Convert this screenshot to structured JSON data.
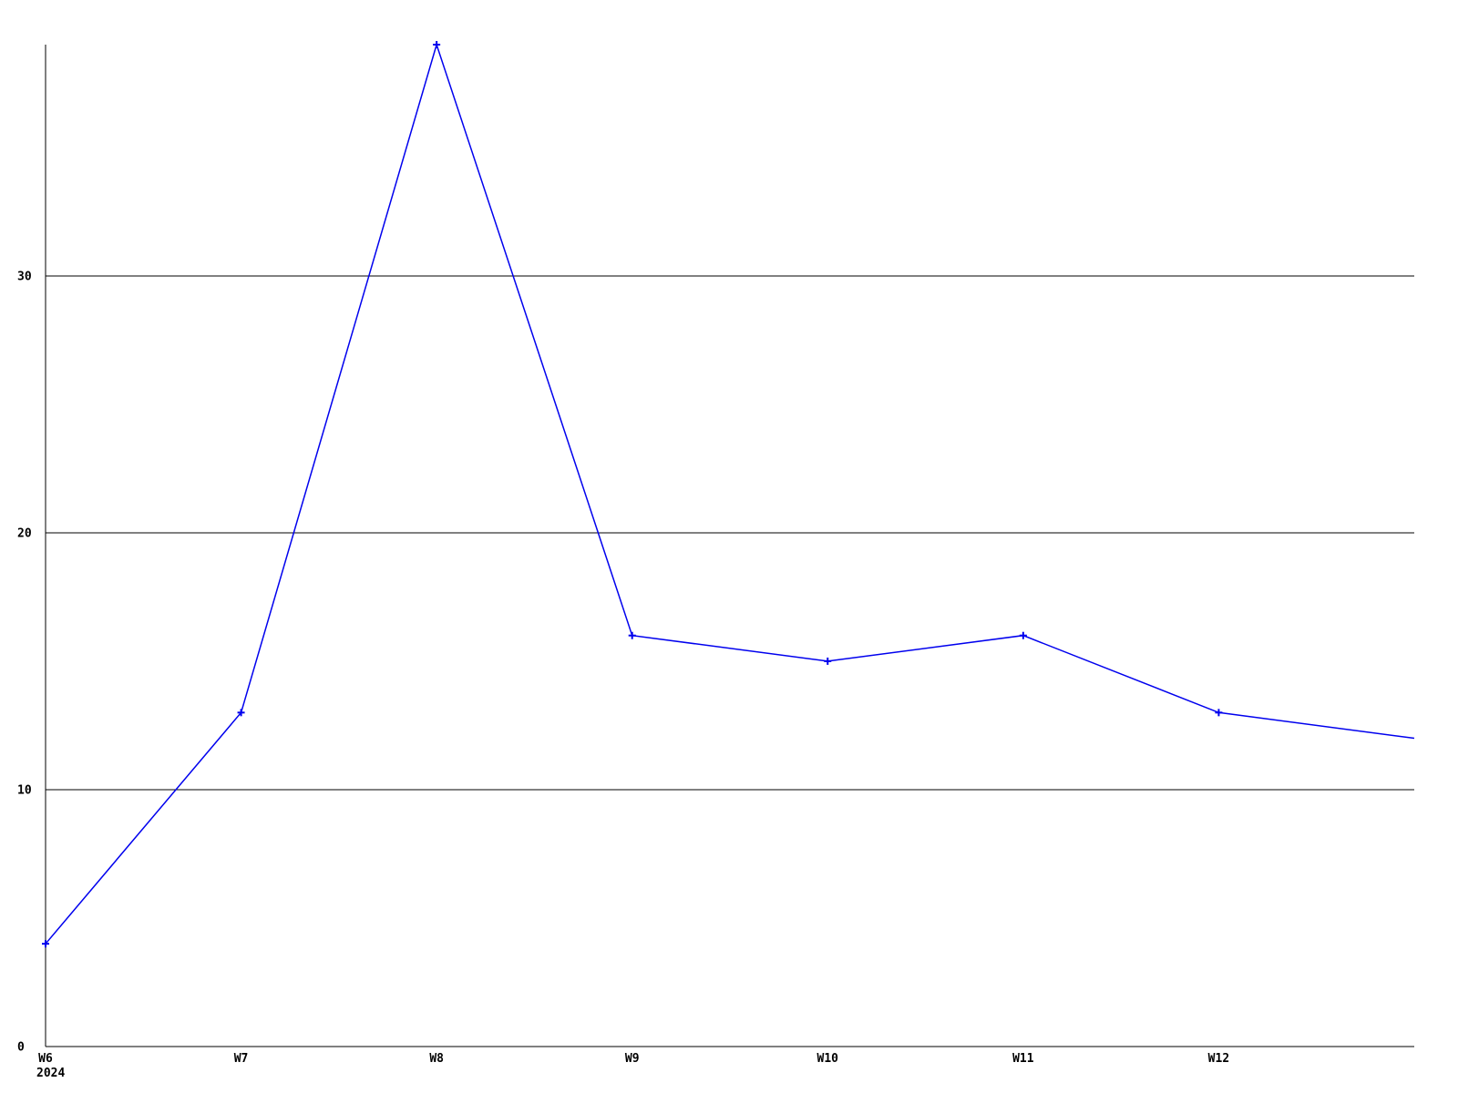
{
  "chart_data": {
    "type": "line",
    "categories": [
      "W6",
      "W7",
      "W8",
      "W9",
      "W10",
      "W11",
      "W12",
      ""
    ],
    "values": [
      4,
      13,
      39,
      16,
      15,
      16,
      13,
      12
    ],
    "year_label": "2024",
    "y_ticks": [
      0,
      10,
      20,
      30
    ],
    "y_tick_labels": [
      "0",
      "10",
      "20",
      "30"
    ],
    "ylim": [
      0,
      39
    ],
    "title": "",
    "xlabel": "",
    "ylabel": "",
    "legend_position": "none",
    "grid": "horizontal-black-lines",
    "marker": "plus",
    "colors": {
      "series": "#0000ee",
      "axis": "#000000",
      "grid": "#000000",
      "text": "#000000",
      "background": "#ffffff"
    }
  }
}
